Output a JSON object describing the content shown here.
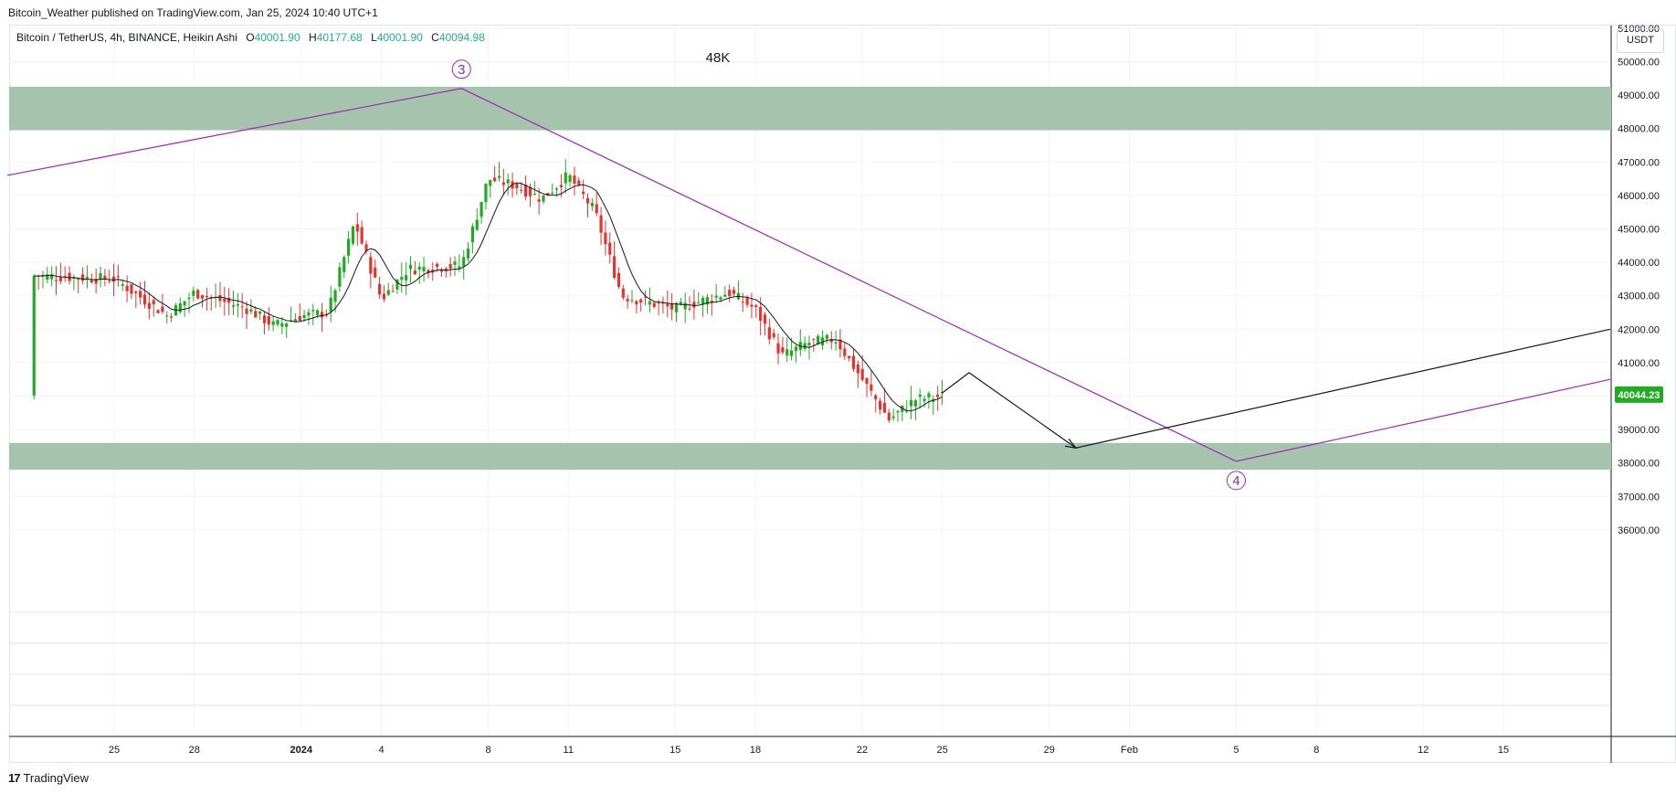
{
  "header": {
    "published": "Bitcoin_Weather published on TradingView.com, Jan 25, 2024 10:40 UTC+1"
  },
  "legend": {
    "symbol": "Bitcoin / TetherUS, 4h, BINANCE, Heikin Ashi",
    "o_label": "O",
    "o": "40001.90",
    "h_label": "H",
    "h": "40177.68",
    "l_label": "L",
    "l": "40001.90",
    "c_label": "C",
    "c": "40094.98"
  },
  "currency": "USDT",
  "annotation": "48K",
  "footer": {
    "brand": "TradingView"
  },
  "colors": {
    "up": "#22ab22",
    "down": "#e3352f",
    "zone": "#a6c4ad",
    "wave": "#9c27b0",
    "projection": "#131722",
    "price_tag": "#22ab22"
  },
  "chart_data": {
    "type": "candlestick",
    "style": "Heikin Ashi",
    "interval": "4h",
    "y_axis": {
      "ticks": [
        "51000.00",
        "50000.00",
        "49000.00",
        "48000.00",
        "47000.00",
        "46000.00",
        "45000.00",
        "44000.00",
        "43000.00",
        "42000.00",
        "41000.00",
        "40000.00",
        "39000.00",
        "38000.00",
        "37000.00",
        "36000.00"
      ],
      "range": [
        35000,
        52100
      ]
    },
    "x_axis": {
      "ticks": [
        "25",
        "28",
        "2024",
        "4",
        "8",
        "11",
        "15",
        "18",
        "22",
        "25",
        "29",
        "Feb",
        "5",
        "8",
        "12",
        "15"
      ]
    },
    "last_price": "40044.23",
    "zones": [
      {
        "from": 47950,
        "to": 49250
      },
      {
        "from": 37800,
        "to": 38600
      }
    ],
    "wave_labels": [
      {
        "label": "3",
        "date": "2024-01-07",
        "price": 49200
      },
      {
        "label": "4",
        "date": "2024-02-05",
        "price": 38050
      }
    ],
    "price_path": [
      {
        "date": "2023-12-22",
        "close": 43600
      },
      {
        "date": "2023-12-25",
        "close": 43500
      },
      {
        "date": "2023-12-27",
        "close": 42400
      },
      {
        "date": "2023-12-28",
        "close": 43100
      },
      {
        "date": "2023-12-30",
        "close": 42600
      },
      {
        "date": "2023-12-31",
        "close": 42100
      },
      {
        "date": "2024-01-01",
        "close": 42400
      },
      {
        "date": "2024-01-02",
        "close": 42500
      },
      {
        "date": "2024-01-03",
        "close": 45200
      },
      {
        "date": "2024-01-04",
        "close": 42900
      },
      {
        "date": "2024-01-05",
        "close": 43800
      },
      {
        "date": "2024-01-07",
        "close": 43900
      },
      {
        "date": "2024-01-08",
        "close": 46500
      },
      {
        "date": "2024-01-09",
        "close": 46300
      },
      {
        "date": "2024-01-10",
        "close": 45900
      },
      {
        "date": "2024-01-11",
        "close": 46600
      },
      {
        "date": "2024-01-12",
        "close": 45500
      },
      {
        "date": "2024-01-13",
        "close": 43000
      },
      {
        "date": "2024-01-14",
        "close": 42800
      },
      {
        "date": "2024-01-15",
        "close": 42600
      },
      {
        "date": "2024-01-17",
        "close": 43100
      },
      {
        "date": "2024-01-18",
        "close": 42600
      },
      {
        "date": "2024-01-19",
        "close": 41200
      },
      {
        "date": "2024-01-20",
        "close": 41600
      },
      {
        "date": "2024-01-21",
        "close": 41700
      },
      {
        "date": "2024-01-22",
        "close": 40500
      },
      {
        "date": "2024-01-23",
        "close": 39300
      },
      {
        "date": "2024-01-24",
        "close": 39900
      },
      {
        "date": "2024-01-25",
        "close": 40000
      }
    ],
    "wave_line": [
      {
        "date": "2023-12-21",
        "price": 46600
      },
      {
        "date": "2024-01-07",
        "price": 49200
      },
      {
        "date": "2024-02-05",
        "price": 38050
      },
      {
        "date": "2024-02-19",
        "price": 40500
      }
    ],
    "projection_line": [
      {
        "date": "2024-01-25",
        "price": 40100
      },
      {
        "date": "2024-01-26",
        "price": 40700
      },
      {
        "date": "2024-01-30",
        "price": 38450
      },
      {
        "date": "2024-02-19",
        "price": 42000
      }
    ]
  }
}
